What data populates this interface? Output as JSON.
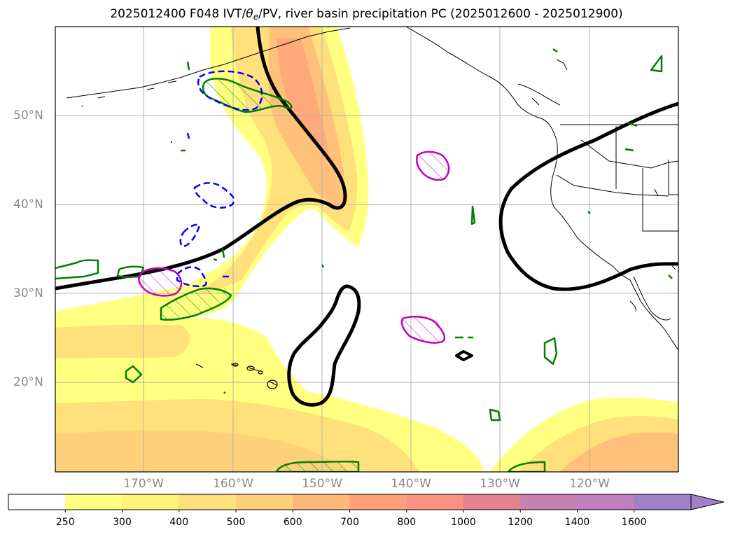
{
  "title": {
    "prefix": "2025012400 F048 IVT/",
    "theta": "θ",
    "theta_sub": "e",
    "suffix": "/PV, river basin precipitation PC (2025012600 - 2025012900)"
  },
  "map": {
    "lat_labels": [
      "50°N",
      "40°N",
      "30°N",
      "20°N"
    ],
    "lon_labels": [
      "170°W",
      "160°W",
      "150°W",
      "140°W",
      "130°W",
      "120°W"
    ],
    "grid": true,
    "contour_colors": {
      "thick_contour": "#000000",
      "precip_green": "#008000",
      "dashed_blue": "#0000ff",
      "magenta": "#c000c0"
    }
  },
  "colorbar": {
    "levels": [
      "250",
      "300",
      "400",
      "500",
      "600",
      "700",
      "800",
      "1000",
      "1200",
      "1400",
      "1600"
    ],
    "colors": [
      "#ffffff",
      "#ffff80",
      "#fff27a",
      "#ffe07a",
      "#ffcf7a",
      "#ffb77a",
      "#ffa07a",
      "#ff8f80",
      "#e6808f",
      "#c880b0",
      "#bf80c0",
      "#a080c8"
    ],
    "extend": "max"
  }
}
